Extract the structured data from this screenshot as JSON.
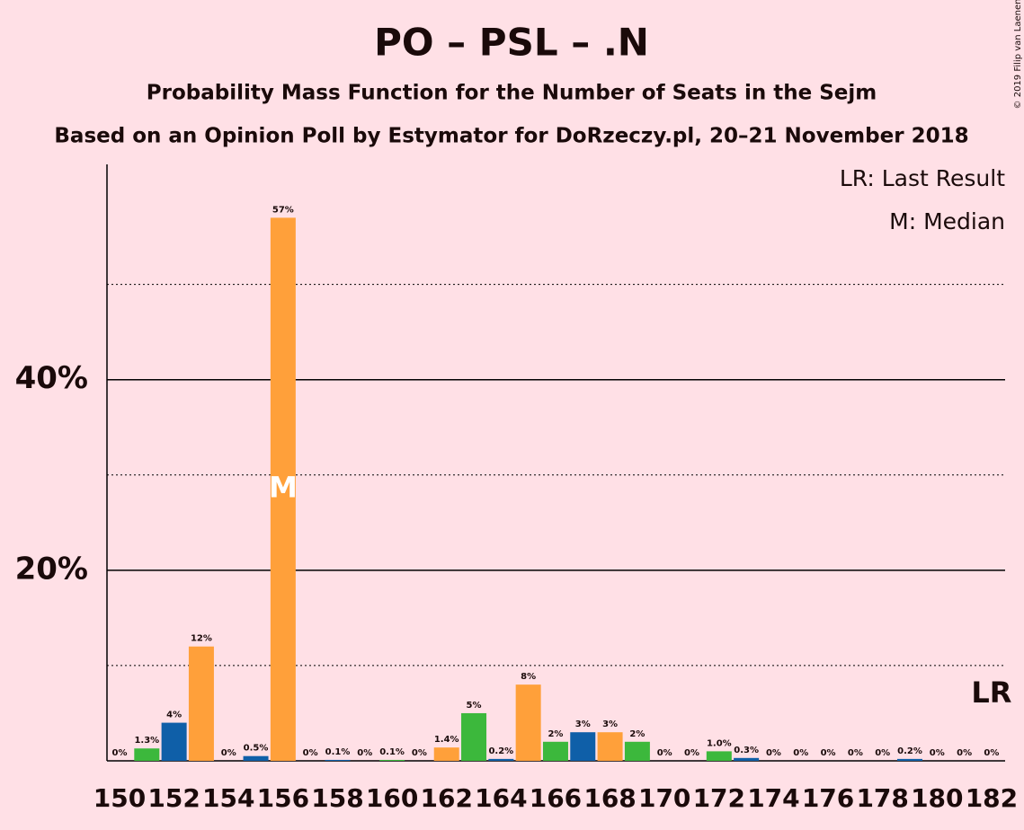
{
  "chart_data": {
    "type": "bar",
    "title": "PO – PSL – .N",
    "subtitle": "Probability Mass Function for the Number of Seats in the Sejm",
    "source": "Based on an Opinion Poll by Estymator for DoRzeczy.pl, 20–21 November 2018",
    "copyright": "© 2019 Filip van Laenen",
    "categories": [
      150,
      null,
      152,
      null,
      154,
      null,
      156,
      null,
      158,
      null,
      160,
      null,
      162,
      null,
      164,
      null,
      166,
      null,
      168,
      null,
      170,
      null,
      172,
      null,
      174,
      null,
      176,
      null,
      178,
      null,
      180,
      null,
      182
    ],
    "values": [
      0,
      1.3,
      4,
      12,
      0,
      0.5,
      57,
      0,
      0.1,
      0,
      0.1,
      0,
      1.4,
      5,
      0.2,
      8,
      2,
      3,
      3,
      2,
      0,
      0,
      1.0,
      0.3,
      0,
      0,
      0,
      0,
      0,
      0.2,
      0,
      0,
      0
    ],
    "value_labels": [
      "0%",
      "1.3%",
      "4%",
      "12%",
      "0%",
      "0.5%",
      "57%",
      "0%",
      "0.1%",
      "0%",
      "0.1%",
      "0%",
      "1.4%",
      "5%",
      "0.2%",
      "8%",
      "2%",
      "3%",
      "3%",
      "2%",
      "0%",
      "0%",
      "1.0%",
      "0.3%",
      "0%",
      "0%",
      "0%",
      "0%",
      "0%",
      "0.2%",
      "0%",
      "0%",
      "0%"
    ],
    "colors": [
      "#ffa03a",
      "#3cb83c",
      "#0f5fa8"
    ],
    "ylim": [
      0,
      62.6
    ],
    "yticks": [
      {
        "value": 20,
        "label": "20%"
      },
      {
        "value": 40,
        "label": "40%"
      }
    ],
    "minor_yticks": [
      10,
      30,
      50
    ],
    "median": {
      "text": "M",
      "at": 156
    },
    "last_result": {
      "text": "LR",
      "at": 182
    },
    "legend": [
      "LR: Last Result",
      "M: Median"
    ]
  }
}
